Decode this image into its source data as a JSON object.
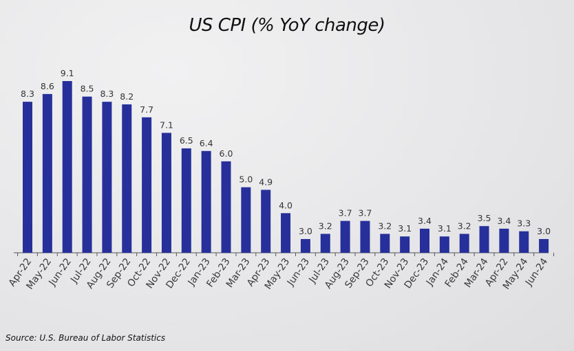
{
  "chart_data": {
    "type": "bar",
    "title": "US CPI (% YoY change)",
    "source": "Source: U.S. Bureau of Labor Statistics",
    "xlabel": "",
    "ylabel": "",
    "categories": [
      "Apr-22",
      "May-22",
      "Jun-22",
      "Jul-22",
      "Aug-22",
      "Sep-22",
      "Oct-22",
      "Nov-22",
      "Dec-22",
      "Jan-23",
      "Feb-23",
      "Mar-23",
      "Apr-23",
      "May-23",
      "Jun-23",
      "Jul-23",
      "Aug-23",
      "Sep-23",
      "Oct-23",
      "Nov-23",
      "Dec-23",
      "Jan-24",
      "Feb-24",
      "Mar-24",
      "Apr-22",
      "May-24",
      "Jun-24"
    ],
    "values": [
      8.3,
      8.6,
      9.1,
      8.5,
      8.3,
      8.2,
      7.7,
      7.1,
      6.5,
      6.4,
      6.0,
      5.0,
      4.9,
      4.0,
      3.0,
      3.2,
      3.7,
      3.7,
      3.2,
      3.1,
      3.4,
      3.1,
      3.2,
      3.5,
      3.4,
      3.3,
      3.0
    ],
    "value_labels": [
      "8.3",
      "8.6",
      "9.1",
      "8.5",
      "8.3",
      "8.2",
      "7.7",
      "7.1",
      "6.5",
      "6.4",
      "6.0",
      "5.0",
      "4.9",
      "4.0",
      "3.0",
      "3.2",
      "3.7",
      "3.7",
      "3.2",
      "3.1",
      "3.4",
      "3.1",
      "3.2",
      "3.5",
      "3.4",
      "3.3",
      "3.0"
    ],
    "ylim": [
      2.47,
      9.1
    ],
    "grid": false,
    "bar_color": "#27309a"
  }
}
